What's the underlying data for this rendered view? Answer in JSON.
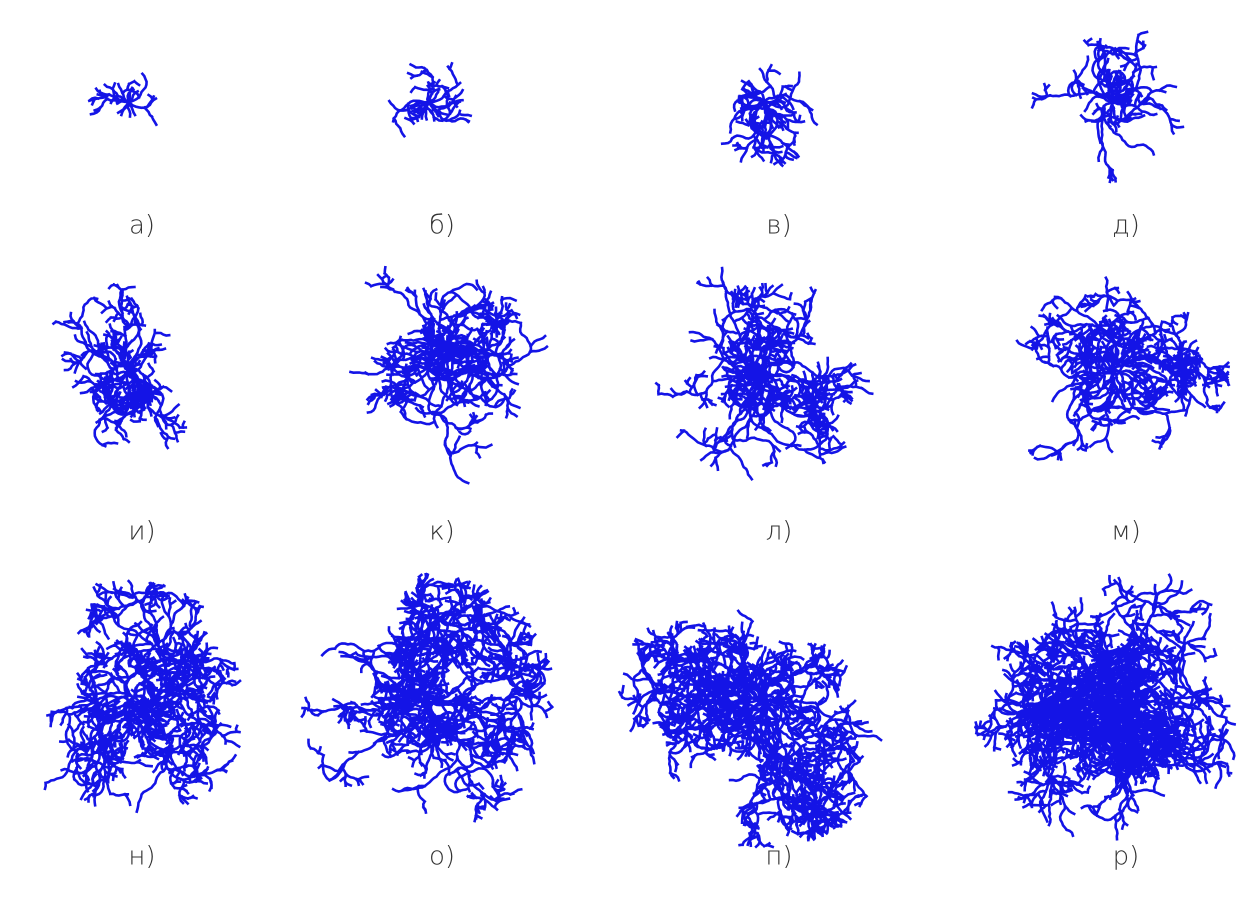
{
  "panels": [
    {
      "label": "а)"
    },
    {
      "label": "б)"
    },
    {
      "label": "в)"
    },
    {
      "label": "д)"
    },
    {
      "label": "и)"
    },
    {
      "label": "к)"
    },
    {
      "label": "л)"
    },
    {
      "label": "м)"
    },
    {
      "label": "н)"
    },
    {
      "label": "о)"
    },
    {
      "label": "п)"
    },
    {
      "label": "р)"
    }
  ]
}
